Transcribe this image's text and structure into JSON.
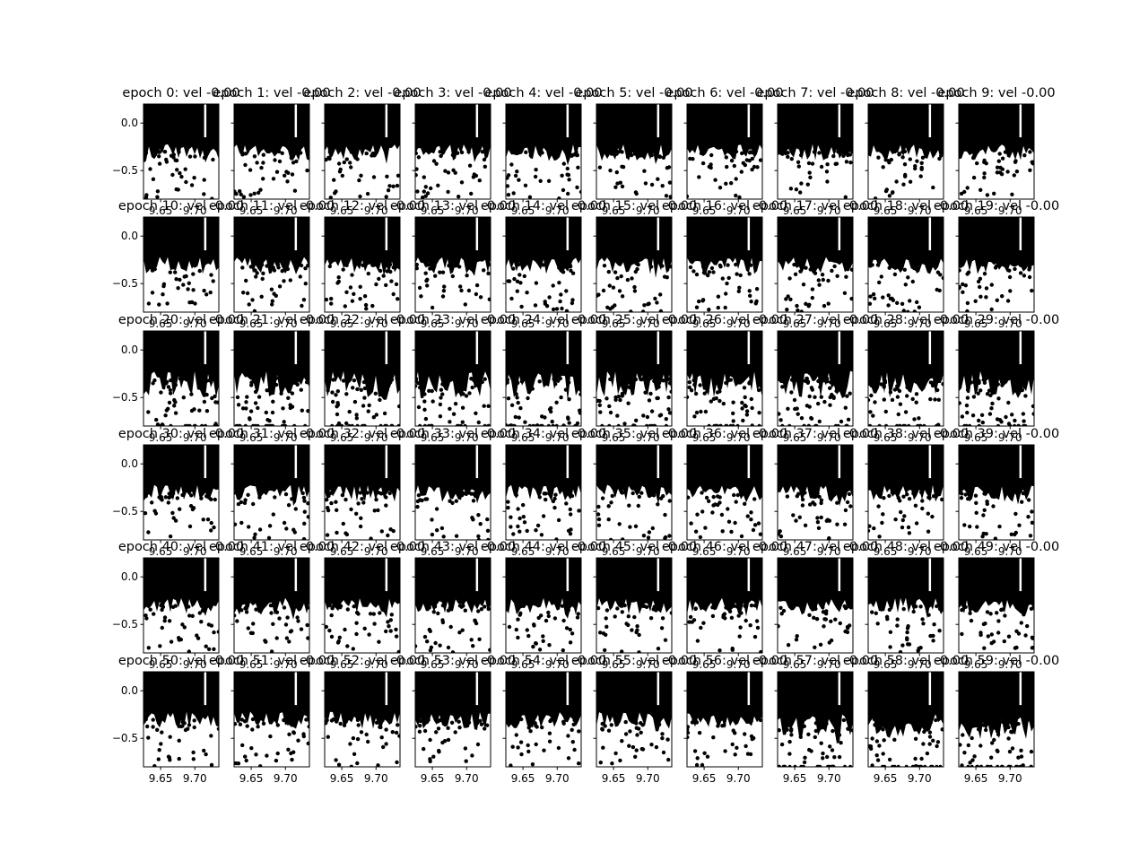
{
  "chart_data": {
    "type": "scatter",
    "title": "",
    "rows": 6,
    "cols": 10,
    "xlim": [
      9.625,
      9.735
    ],
    "ylim": [
      -0.8,
      0.2
    ],
    "x_ticks": [
      9.65,
      9.7
    ],
    "x_tick_labels": [
      "9.65",
      "9.70"
    ],
    "y_ticks": [
      0.0,
      -0.5
    ],
    "y_tick_labels": [
      "0.0",
      "−0.5"
    ],
    "marker_color": "#000000",
    "panels": [
      {
        "epoch": 0,
        "title": "epoch 0: vel -0.00"
      },
      {
        "epoch": 1,
        "title": "epoch 1: vel -0.00"
      },
      {
        "epoch": 2,
        "title": "epoch 2: vel -0.00"
      },
      {
        "epoch": 3,
        "title": "epoch 3: vel -0.00"
      },
      {
        "epoch": 4,
        "title": "epoch 4: vel -0.00"
      },
      {
        "epoch": 5,
        "title": "epoch 5: vel -0.00"
      },
      {
        "epoch": 6,
        "title": "epoch 6: vel -0.00"
      },
      {
        "epoch": 7,
        "title": "epoch 7: vel -0.00"
      },
      {
        "epoch": 8,
        "title": "epoch 8: vel -0.00"
      },
      {
        "epoch": 9,
        "title": "epoch 9: vel -0.00"
      },
      {
        "epoch": 10,
        "title": "epoch 10: vel -0.00"
      },
      {
        "epoch": 11,
        "title": "epoch 11: vel -0.00"
      },
      {
        "epoch": 12,
        "title": "epoch 12: vel -0.00"
      },
      {
        "epoch": 13,
        "title": "epoch 13: vel -0.00"
      },
      {
        "epoch": 14,
        "title": "epoch 14: vel -0.00"
      },
      {
        "epoch": 15,
        "title": "epoch 15: vel -0.00"
      },
      {
        "epoch": 16,
        "title": "epoch 16: vel -0.00"
      },
      {
        "epoch": 17,
        "title": "epoch 17: vel -0.00"
      },
      {
        "epoch": 18,
        "title": "epoch 18: vel -0.00"
      },
      {
        "epoch": 19,
        "title": "epoch 19: vel -0.00"
      },
      {
        "epoch": 20,
        "title": "epoch 20: vel -0.00"
      },
      {
        "epoch": 21,
        "title": "epoch 21: vel -0.00"
      },
      {
        "epoch": 22,
        "title": "epoch 22: vel -0.00"
      },
      {
        "epoch": 23,
        "title": "epoch 23: vel -0.00"
      },
      {
        "epoch": 24,
        "title": "epoch 24: vel -0.00"
      },
      {
        "epoch": 25,
        "title": "epoch 25: vel -0.00"
      },
      {
        "epoch": 26,
        "title": "epoch 26: vel -0.00"
      },
      {
        "epoch": 27,
        "title": "epoch 27: vel -0.00"
      },
      {
        "epoch": 28,
        "title": "epoch 28: vel -0.00"
      },
      {
        "epoch": 29,
        "title": "epoch 29: vel -0.00"
      },
      {
        "epoch": 30,
        "title": "epoch 30: vel -0.00"
      },
      {
        "epoch": 31,
        "title": "epoch 31: vel -0.00"
      },
      {
        "epoch": 32,
        "title": "epoch 32: vel -0.00"
      },
      {
        "epoch": 33,
        "title": "epoch 33: vel -0.00"
      },
      {
        "epoch": 34,
        "title": "epoch 34: vel -0.00"
      },
      {
        "epoch": 35,
        "title": "epoch 35: vel -0.00"
      },
      {
        "epoch": 36,
        "title": "epoch 36: vel -0.00"
      },
      {
        "epoch": 37,
        "title": "epoch 37: vel -0.00"
      },
      {
        "epoch": 38,
        "title": "epoch 38: vel -0.00"
      },
      {
        "epoch": 39,
        "title": "epoch 39: vel -0.00"
      },
      {
        "epoch": 40,
        "title": "epoch 40: vel -0.00"
      },
      {
        "epoch": 41,
        "title": "epoch 41: vel -0.00"
      },
      {
        "epoch": 42,
        "title": "epoch 42: vel -0.00"
      },
      {
        "epoch": 43,
        "title": "epoch 43: vel -0.00"
      },
      {
        "epoch": 44,
        "title": "epoch 44: vel -0.00"
      },
      {
        "epoch": 45,
        "title": "epoch 45: vel -0.00"
      },
      {
        "epoch": 46,
        "title": "epoch 46: vel -0.00"
      },
      {
        "epoch": 47,
        "title": "epoch 47: vel -0.00"
      },
      {
        "epoch": 48,
        "title": "epoch 48: vel -0.00"
      },
      {
        "epoch": 49,
        "title": "epoch 49: vel -0.00"
      },
      {
        "epoch": 50,
        "title": "epoch 50: vel -0.00"
      },
      {
        "epoch": 51,
        "title": "epoch 51: vel -0.00"
      },
      {
        "epoch": 52,
        "title": "epoch 52: vel -0.00"
      },
      {
        "epoch": 53,
        "title": "epoch 53: vel -0.00"
      },
      {
        "epoch": 54,
        "title": "epoch 54: vel -0.00"
      },
      {
        "epoch": 55,
        "title": "epoch 55: vel -0.00"
      },
      {
        "epoch": 56,
        "title": "epoch 56: vel -0.00"
      },
      {
        "epoch": 57,
        "title": "epoch 57: vel -0.00"
      },
      {
        "epoch": 58,
        "title": "epoch 58: vel -0.00"
      },
      {
        "epoch": 59,
        "title": "epoch 59: vel -0.00"
      }
    ]
  }
}
